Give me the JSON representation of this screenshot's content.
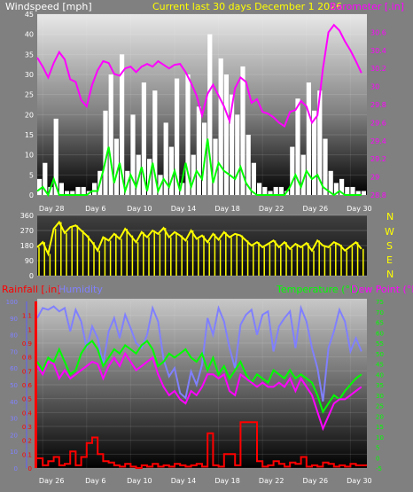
{
  "header": {
    "windspeed_label": "Windspeed [mph]",
    "current_label": "Current last 30 days December 1 2026",
    "barometer_label": "Barometer [.in]",
    "rainfall_label": "Rainfall [.in]",
    "humidity_label": "Humidity",
    "temperature_label": "Temperature (°F)",
    "dewpoint_label": "Dew Point (°F)"
  },
  "colors": {
    "windspeed": "#ffffff",
    "windgust": "#00ff00",
    "barometer": "#ff00ff",
    "wind_direction": "#ffff00",
    "rainfall": "#ff0000",
    "humidity": "#8080ff",
    "temperature": "#00ff00",
    "dewpoint": "#ff00ff",
    "title_yellow": "#ffff00"
  },
  "chart_data": [
    {
      "name": "wind-barometer",
      "type": "line",
      "x_ticks": [
        "Day 28",
        "Day 6",
        "Day 10",
        "Day 14",
        "Day 18",
        "Day 22",
        "Day 26",
        "Day 30"
      ],
      "y_left_ticks": [
        "0",
        "5",
        "10",
        "15",
        "20",
        "25",
        "30",
        "35",
        "40",
        "45"
      ],
      "ylim_left": [
        0,
        45
      ],
      "y_right_ticks": [
        "28.8",
        "29",
        "29.2",
        "29.4",
        "29.6",
        "29.8",
        "30",
        "30.2",
        "30.4",
        "30.6"
      ],
      "ylim_right": [
        28.8,
        30.8
      ],
      "series": [
        {
          "name": "Windspeed [mph]",
          "axis": "left",
          "style": "bars",
          "x": [
            0,
            0.5,
            1,
            1.5,
            2,
            2.5,
            3,
            3.5,
            4,
            4.5,
            5,
            5.5,
            6,
            6.5,
            7,
            7.5,
            8,
            8.5,
            9,
            9.5,
            10,
            10.5,
            11,
            11.5,
            12,
            12.5,
            13,
            13.5,
            14,
            14.5,
            15,
            15.5,
            16,
            16.5,
            17,
            17.5,
            18,
            18.5,
            19,
            19.5,
            20,
            20.5,
            21,
            21.5,
            22,
            22.5,
            23,
            23.5,
            24,
            24.5,
            25,
            25.5,
            26,
            26.5,
            27,
            27.5,
            28,
            28.5,
            29,
            29.5
          ],
          "values": [
            4,
            8,
            2,
            19,
            3,
            1,
            1,
            2,
            2,
            1,
            3,
            6,
            21,
            30,
            14,
            35,
            6,
            20,
            10,
            28,
            9,
            26,
            5,
            18,
            12,
            29,
            3,
            30,
            10,
            22,
            18,
            40,
            14,
            34,
            30,
            25,
            20,
            32,
            15,
            8,
            3,
            2,
            1,
            2,
            2,
            1,
            12,
            24,
            10,
            28,
            21,
            26,
            14,
            6,
            3,
            4,
            2,
            2,
            1,
            1
          ]
        },
        {
          "name": "Wind gust",
          "axis": "left",
          "style": "line",
          "x": [
            0,
            0.5,
            1,
            1.5,
            2,
            2.5,
            3,
            3.5,
            4,
            4.5,
            5,
            5.5,
            6,
            6.5,
            7,
            7.5,
            8,
            8.5,
            9,
            9.5,
            10,
            10.5,
            11,
            11.5,
            12,
            12.5,
            13,
            13.5,
            14,
            14.5,
            15,
            15.5,
            16,
            16.5,
            17,
            17.5,
            18,
            18.5,
            19,
            19.5,
            20,
            20.5,
            21,
            21.5,
            22,
            22.5,
            23,
            23.5,
            24,
            24.5,
            25,
            25.5,
            26,
            26.5,
            27,
            27.5,
            28,
            28.5,
            29,
            29.5
          ],
          "values": [
            1,
            2,
            0,
            4,
            0,
            0,
            0,
            0,
            0,
            0,
            1,
            1,
            6,
            12,
            3,
            8,
            1,
            5,
            2,
            7,
            1,
            8,
            1,
            4,
            2,
            6,
            1,
            8,
            2,
            6,
            4,
            14,
            3,
            8,
            6,
            5,
            4,
            7,
            3,
            1,
            0,
            0,
            0,
            0,
            0,
            0,
            2,
            5,
            2,
            6,
            4,
            5,
            2,
            1,
            0,
            1,
            0,
            0,
            0,
            0
          ]
        },
        {
          "name": "Barometer [.in]",
          "axis": "right",
          "style": "line",
          "x": [
            0,
            0.5,
            1,
            1.5,
            2,
            2.5,
            3,
            3.5,
            4,
            4.5,
            5,
            5.5,
            6,
            6.5,
            7,
            7.5,
            8,
            8.5,
            9,
            9.5,
            10,
            10.5,
            11,
            11.5,
            12,
            12.5,
            13,
            13.5,
            14,
            14.5,
            15,
            15.5,
            16,
            16.5,
            17,
            17.5,
            18,
            18.5,
            19,
            19.5,
            20,
            20.5,
            21,
            21.5,
            22,
            22.5,
            23,
            23.5,
            24,
            24.5,
            25,
            25.5,
            26,
            26.5,
            27,
            27.5,
            28,
            28.5,
            29,
            29.5
          ],
          "values": [
            30.32,
            30.22,
            30.1,
            30.26,
            30.38,
            30.3,
            30.08,
            30.05,
            29.85,
            29.78,
            30.02,
            30.18,
            30.28,
            30.26,
            30.14,
            30.12,
            30.2,
            30.22,
            30.16,
            30.22,
            30.25,
            30.22,
            30.28,
            30.24,
            30.2,
            30.24,
            30.25,
            30.16,
            30.04,
            29.9,
            29.68,
            29.92,
            30.02,
            29.9,
            29.78,
            29.62,
            29.98,
            30.1,
            30.05,
            29.82,
            29.86,
            29.72,
            29.7,
            29.66,
            29.6,
            29.56,
            29.72,
            29.74,
            29.84,
            29.78,
            29.6,
            29.68,
            30.2,
            30.6,
            30.68,
            30.62,
            30.5,
            30.4,
            30.28,
            30.15
          ]
        }
      ]
    },
    {
      "name": "wind-direction",
      "type": "line",
      "series_name": "Wind direction",
      "y_ticks": [
        "0",
        "90",
        "180",
        "270",
        "360"
      ],
      "ylim": [
        0,
        360
      ],
      "compass": [
        "N",
        "W",
        "S",
        "E",
        "N"
      ],
      "x": [
        0,
        0.5,
        1,
        1.5,
        2,
        2.5,
        3,
        3.5,
        4,
        4.5,
        5,
        5.5,
        6,
        6.5,
        7,
        7.5,
        8,
        8.5,
        9,
        9.5,
        10,
        10.5,
        11,
        11.5,
        12,
        12.5,
        13,
        13.5,
        14,
        14.5,
        15,
        15.5,
        16,
        16.5,
        17,
        17.5,
        18,
        18.5,
        19,
        19.5,
        20,
        20.5,
        21,
        21.5,
        22,
        22.5,
        23,
        23.5,
        24,
        24.5,
        25,
        25.5,
        26,
        26.5,
        27,
        27.5,
        28,
        28.5,
        29,
        29.5
      ],
      "values": [
        170,
        200,
        130,
        280,
        320,
        255,
        290,
        300,
        270,
        240,
        200,
        150,
        230,
        210,
        250,
        220,
        280,
        240,
        200,
        260,
        230,
        270,
        250,
        285,
        230,
        260,
        240,
        210,
        270,
        220,
        240,
        200,
        250,
        215,
        260,
        230,
        250,
        240,
        210,
        180,
        200,
        170,
        190,
        210,
        170,
        200,
        160,
        190,
        170,
        195,
        150,
        210,
        180,
        170,
        200,
        185,
        150,
        175,
        200,
        160
      ]
    },
    {
      "name": "rain-humidity-temperature",
      "type": "line",
      "x_ticks": [
        "Day 26",
        "Day 6",
        "Day 10",
        "Day 14",
        "Day 18",
        "Day 22",
        "Day 26",
        "Day 30"
      ],
      "y_rain_ticks": [
        "0",
        "0.1",
        "0.2",
        "0.3",
        "0.4",
        "0.5",
        "0.6",
        "0.7",
        "0.8",
        "0.9",
        "1",
        "1.1"
      ],
      "ylim_rain": [
        0,
        1.2
      ],
      "y_humidity_ticks": [
        "0",
        "10",
        "20",
        "30",
        "40",
        "50",
        "60",
        "70",
        "80",
        "90",
        "100"
      ],
      "ylim_humidity": [
        0,
        100
      ],
      "y_temp_ticks": [
        "-5",
        "0",
        "5",
        "10",
        "15",
        "20",
        "25",
        "30",
        "35",
        "40",
        "45",
        "50",
        "55",
        "60",
        "65",
        "70",
        "75"
      ],
      "ylim_temp": [
        -5,
        75
      ],
      "series": [
        {
          "name": "Rainfall [.in]",
          "axis": "rain",
          "style": "step",
          "x": [
            0,
            0.5,
            1,
            1.5,
            2,
            2.5,
            3,
            3.5,
            4,
            4.5,
            5,
            5.5,
            6,
            6.5,
            7,
            7.5,
            8,
            8.5,
            9,
            9.5,
            10,
            10.5,
            11,
            11.5,
            12,
            12.5,
            13,
            13.5,
            14,
            14.5,
            15,
            15.5,
            16,
            16.5,
            17,
            17.5,
            18,
            18.5,
            19,
            19.5,
            20,
            20.5,
            21,
            21.5,
            22,
            22.5,
            23,
            23.5,
            24,
            24.5,
            25,
            25.5,
            26,
            26.5,
            27,
            27.5,
            28,
            28.5,
            29,
            29.5
          ],
          "values": [
            0.07,
            0.02,
            0.05,
            0.08,
            0.02,
            0.03,
            0.12,
            0.02,
            0.08,
            0.18,
            0.22,
            0.1,
            0.05,
            0.04,
            0.02,
            0.01,
            0.03,
            0.01,
            0,
            0.02,
            0.01,
            0.03,
            0.01,
            0.02,
            0.01,
            0.03,
            0.02,
            0.01,
            0.02,
            0.03,
            0.01,
            0.25,
            0.02,
            0.01,
            0.1,
            0.1,
            0.02,
            0.33,
            0.33,
            0.33,
            0.05,
            0.01,
            0.02,
            0.05,
            0.03,
            0.01,
            0.04,
            0.03,
            0.08,
            0.01,
            0.02,
            0.01,
            0.04,
            0.03,
            0.01,
            0.02,
            0.01,
            0.03,
            0.02,
            0.02
          ]
        },
        {
          "name": "Humidity",
          "axis": "humidity",
          "style": "line",
          "x": [
            0,
            0.5,
            1,
            1.5,
            2,
            2.5,
            3,
            3.5,
            4,
            4.5,
            5,
            5.5,
            6,
            6.5,
            7,
            7.5,
            8,
            8.5,
            9,
            9.5,
            10,
            10.5,
            11,
            11.5,
            12,
            12.5,
            13,
            13.5,
            14,
            14.5,
            15,
            15.5,
            16,
            16.5,
            17,
            17.5,
            18,
            18.5,
            19,
            19.5,
            20,
            20.5,
            21,
            21.5,
            22,
            22.5,
            23,
            23.5,
            24,
            24.5,
            25,
            25.5,
            26,
            26.5,
            27,
            27.5,
            28,
            28.5,
            29,
            29.5
          ],
          "values": [
            90,
            96,
            95,
            97,
            94,
            96,
            82,
            95,
            88,
            72,
            85,
            78,
            62,
            82,
            90,
            78,
            92,
            84,
            75,
            72,
            80,
            96,
            88,
            65,
            55,
            60,
            45,
            42,
            58,
            50,
            62,
            90,
            80,
            96,
            88,
            72,
            60,
            86,
            92,
            95,
            80,
            92,
            94,
            70,
            85,
            90,
            94,
            72,
            96,
            88,
            72,
            60,
            40,
            72,
            82,
            95,
            88,
            70,
            78,
            70
          ]
        },
        {
          "name": "Temperature (°F)",
          "axis": "temp",
          "style": "line",
          "x": [
            0,
            0.5,
            1,
            1.5,
            2,
            2.5,
            3,
            3.5,
            4,
            4.5,
            5,
            5.5,
            6,
            6.5,
            7,
            7.5,
            8,
            8.5,
            9,
            9.5,
            10,
            10.5,
            11,
            11.5,
            12,
            12.5,
            13,
            13.5,
            14,
            14.5,
            15,
            15.5,
            16,
            16.5,
            17,
            17.5,
            18,
            18.5,
            19,
            19.5,
            20,
            20.5,
            21,
            21.5,
            22,
            22.5,
            23,
            23.5,
            24,
            24.5,
            25,
            25.5,
            26,
            26.5,
            27,
            27.5,
            28,
            28.5,
            29,
            29.5
          ],
          "values": [
            46,
            42,
            48,
            46,
            52,
            46,
            40,
            42,
            50,
            54,
            56,
            52,
            44,
            48,
            52,
            50,
            54,
            52,
            50,
            54,
            56,
            52,
            44,
            46,
            50,
            48,
            50,
            52,
            48,
            46,
            50,
            42,
            48,
            40,
            44,
            38,
            42,
            46,
            40,
            36,
            40,
            38,
            36,
            42,
            40,
            38,
            42,
            38,
            40,
            38,
            36,
            30,
            22,
            26,
            30,
            28,
            32,
            35,
            38,
            40
          ]
        },
        {
          "name": "Dew Point (°F)",
          "axis": "temp",
          "style": "line",
          "x": [
            0,
            0.5,
            1,
            1.5,
            2,
            2.5,
            3,
            3.5,
            4,
            4.5,
            5,
            5.5,
            6,
            6.5,
            7,
            7.5,
            8,
            8.5,
            9,
            9.5,
            10,
            10.5,
            11,
            11.5,
            12,
            12.5,
            13,
            13.5,
            14,
            14.5,
            15,
            15.5,
            16,
            16.5,
            17,
            17.5,
            18,
            18.5,
            19,
            19.5,
            20,
            20.5,
            21,
            21.5,
            22,
            22.5,
            23,
            23.5,
            24,
            24.5,
            25,
            25.5,
            26,
            26.5,
            27,
            27.5,
            28,
            28.5,
            29,
            29.5
          ],
          "values": [
            44,
            40,
            46,
            45,
            38,
            42,
            38,
            40,
            42,
            44,
            46,
            45,
            38,
            44,
            48,
            44,
            50,
            46,
            42,
            44,
            46,
            48,
            40,
            34,
            30,
            32,
            28,
            26,
            32,
            30,
            34,
            40,
            40,
            38,
            40,
            32,
            30,
            40,
            38,
            36,
            34,
            36,
            34,
            34,
            36,
            34,
            38,
            32,
            38,
            34,
            30,
            22,
            14,
            20,
            26,
            28,
            28,
            30,
            32,
            34
          ]
        }
      ]
    }
  ]
}
